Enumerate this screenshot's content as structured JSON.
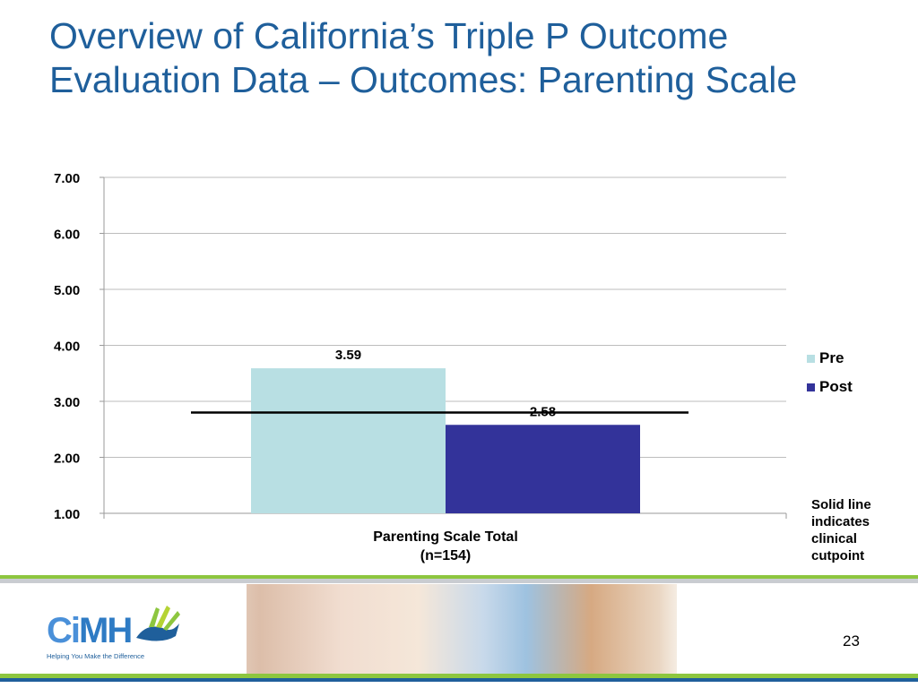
{
  "slide": {
    "title_line1": "Overview of California’s Triple P Outcome",
    "title_line2": "Evaluation Data – Outcomes: Parenting Scale",
    "note": "Solid line indicates clinical cutpoint",
    "page_number": "23",
    "logo_text_ci": "Ci",
    "logo_text_mh": "MH",
    "logo_tagline": "Helping You Make the Difference"
  },
  "chart_data": {
    "type": "bar",
    "categories": [
      "Parenting Scale Total\n(n=154)"
    ],
    "category_lines": [
      "Parenting Scale Total",
      "(n=154)"
    ],
    "series": [
      {
        "name": "Pre",
        "values": [
          3.59
        ],
        "color": "#b8dfe3"
      },
      {
        "name": "Post",
        "values": [
          2.58
        ],
        "color": "#33339a"
      }
    ],
    "data_labels": [
      "3.59",
      "2.58"
    ],
    "ylim": [
      1.0,
      7.0
    ],
    "yticks": [
      "1.00",
      "2.00",
      "3.00",
      "4.00",
      "5.00",
      "6.00",
      "7.00"
    ],
    "cutpoint": 2.8,
    "grid": true,
    "legend": "right"
  }
}
